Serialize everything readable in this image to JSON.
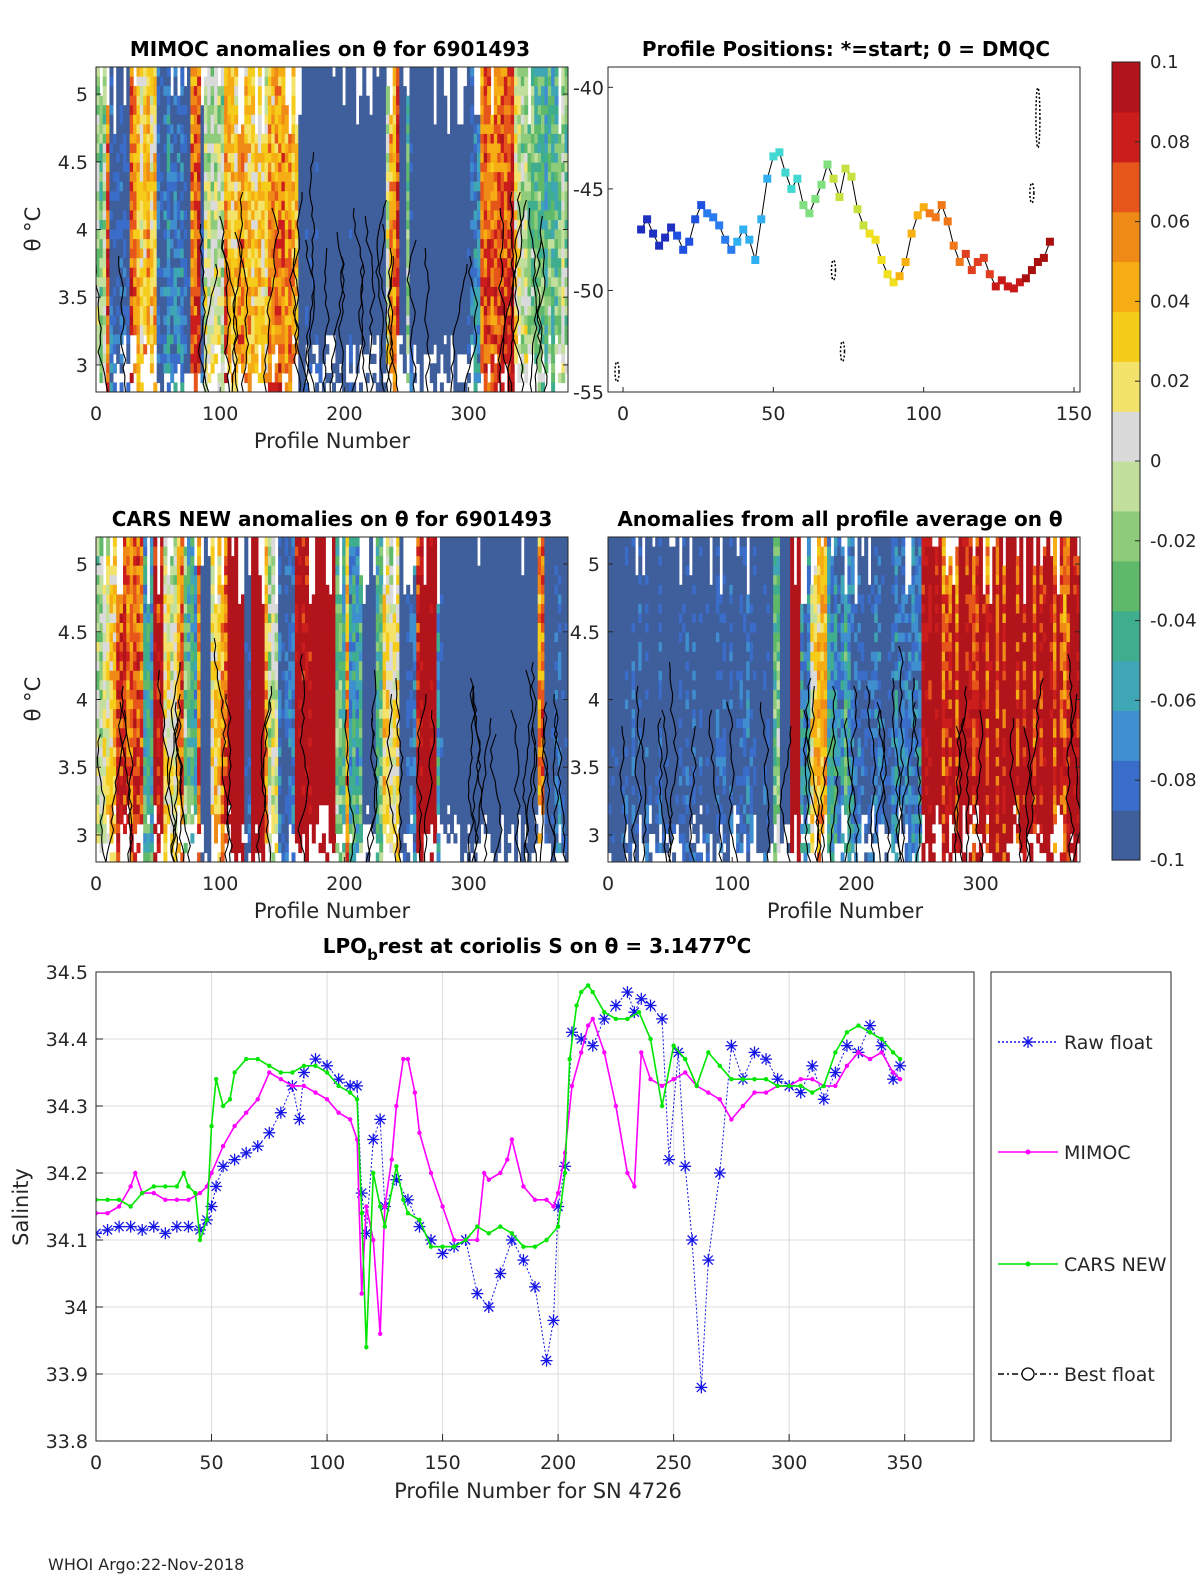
{
  "palette": {
    "cmap": [
      "#3f5e9c",
      "#3a6dc9",
      "#3f8fd0",
      "#3fa6b6",
      "#3fae8e",
      "#5fb96a",
      "#8ecb7a",
      "#c3df9d",
      "#dadada",
      "#f4e36a",
      "#f6cc1a",
      "#f6ad14",
      "#f08a16",
      "#e6561a",
      "#cc1d1d",
      "#b2141b"
    ],
    "raw": "#1414e6",
    "mimoc": "#ff00ff",
    "cars": "#00e600",
    "best": "#000000"
  },
  "panels": {
    "mimoc_title": "MIMOC anomalies on θ  for 6901493",
    "positions_title": "Profile Positions: *=start; 0 = DMQC",
    "cars_title": "CARS NEW anomalies on θ for 6901493",
    "avg_title": "Anomalies from all profile average on θ",
    "ylabel_theta": "θ °C",
    "xlabel_profile": "Profile Number"
  },
  "chart_data": [
    {
      "id": "mimoc",
      "type": "heatmap",
      "title": "MIMOC anomalies on θ  for 6901493",
      "xlabel": "Profile Number",
      "ylabel": "θ °C",
      "xlim": [
        0,
        380
      ],
      "ylim": [
        2.8,
        5.2
      ],
      "xticks": [
        "0",
        "100",
        "200",
        "300"
      ],
      "yticks": [
        "3",
        "3.5",
        "4",
        "4.5",
        "5"
      ],
      "clim": [
        -0.1,
        0.1
      ],
      "seed": 11
    },
    {
      "id": "positions",
      "type": "scatter",
      "title": "Profile Positions: *=start; 0 = DMQC",
      "xlim": [
        -5,
        152
      ],
      "ylim": [
        -55,
        -39
      ],
      "xticks": [
        "0",
        "50",
        "100",
        "150"
      ],
      "yticks": [
        "-55",
        "-50",
        "-45",
        "-40"
      ],
      "track": [
        [
          6,
          -47
        ],
        [
          8,
          -46.5
        ],
        [
          10,
          -47.2
        ],
        [
          12,
          -47.8
        ],
        [
          14,
          -47.4
        ],
        [
          16,
          -46.9
        ],
        [
          18,
          -47.3
        ],
        [
          20,
          -48
        ],
        [
          22,
          -47.6
        ],
        [
          24,
          -46.5
        ],
        [
          26,
          -45.8
        ],
        [
          28,
          -46.2
        ],
        [
          30,
          -46.4
        ],
        [
          32,
          -46.8
        ],
        [
          34,
          -47.5
        ],
        [
          36,
          -48
        ],
        [
          38,
          -47.6
        ],
        [
          40,
          -47
        ],
        [
          42,
          -47.5
        ],
        [
          44,
          -48.5
        ],
        [
          46,
          -46.5
        ],
        [
          48,
          -44.5
        ],
        [
          50,
          -43.4
        ],
        [
          52,
          -43.2
        ],
        [
          54,
          -44.2
        ],
        [
          56,
          -45
        ],
        [
          58,
          -44.5
        ],
        [
          60,
          -45.8
        ],
        [
          62,
          -46.2
        ],
        [
          64,
          -45.5
        ],
        [
          66,
          -44.8
        ],
        [
          68,
          -43.8
        ],
        [
          70,
          -44.5
        ],
        [
          72,
          -45.4
        ],
        [
          74,
          -44
        ],
        [
          76,
          -44.4
        ],
        [
          78,
          -46
        ],
        [
          80,
          -46.8
        ],
        [
          82,
          -47.2
        ],
        [
          84,
          -47.5
        ],
        [
          86,
          -48.5
        ],
        [
          88,
          -49.2
        ],
        [
          90,
          -49.6
        ],
        [
          92,
          -49.3
        ],
        [
          94,
          -48.6
        ],
        [
          96,
          -47.2
        ],
        [
          98,
          -46.3
        ],
        [
          100,
          -45.9
        ],
        [
          102,
          -46.2
        ],
        [
          104,
          -46.4
        ],
        [
          106,
          -45.8
        ],
        [
          108,
          -46.6
        ],
        [
          110,
          -47.8
        ],
        [
          112,
          -48.6
        ],
        [
          114,
          -48.2
        ],
        [
          116,
          -49
        ],
        [
          118,
          -48.6
        ],
        [
          120,
          -48.4
        ],
        [
          122,
          -49.2
        ],
        [
          124,
          -49.8
        ],
        [
          126,
          -49.5
        ],
        [
          128,
          -49.8
        ],
        [
          130,
          -49.9
        ],
        [
          132,
          -49.6
        ],
        [
          134,
          -49.4
        ],
        [
          136,
          -49
        ],
        [
          138,
          -48.6
        ],
        [
          140,
          -48.4
        ],
        [
          142,
          -47.6
        ]
      ],
      "dmqc_blobs": [
        [
          70,
          -49
        ],
        [
          73,
          -53
        ],
        [
          138,
          -41.5
        ],
        [
          136,
          -45.2
        ],
        [
          -2,
          -54
        ]
      ]
    },
    {
      "id": "cars",
      "type": "heatmap",
      "title": "CARS NEW anomalies on θ for 6901493",
      "xlabel": "Profile Number",
      "ylabel": "θ °C",
      "xlim": [
        0,
        380
      ],
      "ylim": [
        2.8,
        5.2
      ],
      "xticks": [
        "0",
        "100",
        "200",
        "300"
      ],
      "yticks": [
        "3",
        "3.5",
        "4",
        "4.5",
        "5"
      ],
      "clim": [
        -0.1,
        0.1
      ],
      "seed": 23
    },
    {
      "id": "avg",
      "type": "heatmap",
      "title": "Anomalies from all profile average on θ",
      "xlabel": "Profile Number",
      "xlim": [
        0,
        380
      ],
      "ylim": [
        2.8,
        5.2
      ],
      "xticks": [
        "0",
        "100",
        "200",
        "300"
      ],
      "yticks": [
        "3",
        "3.5",
        "4",
        "4.5",
        "5"
      ],
      "clim": [
        -0.1,
        0.1
      ],
      "seed": 37
    },
    {
      "id": "colorbar",
      "type": "heatmap",
      "ticks": [
        "0.1",
        "0.08",
        "0.06",
        "0.04",
        "0.02",
        "0",
        "-0.02",
        "-0.04",
        "-0.06",
        "-0.08",
        "-0.1"
      ],
      "clim": [
        -0.1,
        0.1
      ]
    },
    {
      "id": "salinity",
      "type": "line",
      "title_main": "LPO",
      "title_sub": "b",
      "title_rest": "rest at coriolis S on θ = 3.1477",
      "title_sup": "o",
      "title_end": "C",
      "xlabel": "Profile Number for SN 4726",
      "ylabel": "Salinity",
      "xlim": [
        0,
        380
      ],
      "ylim": [
        33.8,
        34.5
      ],
      "xticks": [
        "0",
        "50",
        "100",
        "150",
        "200",
        "250",
        "300",
        "350"
      ],
      "yticks": [
        "33.8",
        "33.9",
        "34",
        "34.1",
        "34.2",
        "34.3",
        "34.4",
        "34.5"
      ],
      "series": [
        {
          "name": "Raw float",
          "x": [
            0,
            5,
            10,
            15,
            20,
            25,
            30,
            35,
            40,
            45,
            48,
            50,
            52,
            55,
            60,
            65,
            70,
            75,
            80,
            85,
            88,
            90,
            95,
            100,
            105,
            110,
            113,
            115,
            117,
            120,
            123,
            125,
            130,
            135,
            140,
            145,
            150,
            155,
            160,
            165,
            170,
            175,
            180,
            185,
            190,
            195,
            198,
            200,
            203,
            206,
            210,
            215,
            220,
            225,
            230,
            233,
            236,
            240,
            245,
            248,
            252,
            255,
            258,
            262,
            265,
            270,
            275,
            280,
            285,
            290,
            295,
            300,
            305,
            310,
            315,
            320,
            325,
            330,
            335,
            340,
            345,
            348
          ],
          "y": [
            34.11,
            34.115,
            34.12,
            34.12,
            34.115,
            34.12,
            34.11,
            34.12,
            34.12,
            34.115,
            34.13,
            34.15,
            34.18,
            34.21,
            34.22,
            34.23,
            34.24,
            34.26,
            34.29,
            34.33,
            34.28,
            34.35,
            34.37,
            34.36,
            34.34,
            34.33,
            34.33,
            34.17,
            34.11,
            34.25,
            34.28,
            34.15,
            34.19,
            34.16,
            34.12,
            34.1,
            34.08,
            34.09,
            34.1,
            34.02,
            34.0,
            34.05,
            34.1,
            34.07,
            34.03,
            33.92,
            33.98,
            34.15,
            34.21,
            34.41,
            34.4,
            34.39,
            34.43,
            34.45,
            34.47,
            34.44,
            34.46,
            34.45,
            34.43,
            34.22,
            34.38,
            34.21,
            34.1,
            33.88,
            34.07,
            34.2,
            34.39,
            34.34,
            34.38,
            34.37,
            34.34,
            34.33,
            34.32,
            34.36,
            34.31,
            34.35,
            34.39,
            34.38,
            34.42,
            34.39,
            34.34,
            34.36
          ]
        },
        {
          "name": "MIMOC",
          "x": [
            0,
            5,
            10,
            15,
            17,
            20,
            25,
            30,
            35,
            40,
            45,
            48,
            50,
            55,
            60,
            65,
            70,
            75,
            80,
            85,
            90,
            95,
            100,
            105,
            110,
            113,
            115,
            117,
            120,
            123,
            125,
            128,
            130,
            133,
            135,
            138,
            140,
            145,
            150,
            155,
            160,
            165,
            168,
            170,
            175,
            178,
            180,
            185,
            190,
            195,
            198,
            200,
            203,
            206,
            210,
            213,
            215,
            220,
            225,
            230,
            233,
            236,
            240,
            245,
            250,
            255,
            260,
            265,
            270,
            275,
            280,
            285,
            290,
            295,
            300,
            305,
            310,
            315,
            320,
            325,
            330,
            335,
            340,
            345,
            348
          ],
          "y": [
            34.14,
            34.14,
            34.15,
            34.18,
            34.2,
            34.17,
            34.17,
            34.16,
            34.16,
            34.16,
            34.17,
            34.18,
            34.2,
            34.24,
            34.27,
            34.29,
            34.31,
            34.35,
            34.34,
            34.33,
            34.33,
            34.32,
            34.31,
            34.29,
            34.28,
            34.25,
            34.02,
            34.15,
            34.1,
            33.96,
            34.15,
            34.22,
            34.3,
            34.37,
            34.37,
            34.32,
            34.26,
            34.2,
            34.15,
            34.1,
            34.1,
            34.1,
            34.2,
            34.19,
            34.2,
            34.22,
            34.25,
            34.18,
            34.16,
            34.16,
            34.15,
            34.17,
            34.23,
            34.33,
            34.38,
            34.42,
            34.43,
            34.38,
            34.3,
            34.2,
            34.18,
            34.38,
            34.34,
            34.33,
            34.34,
            34.35,
            34.33,
            34.32,
            34.31,
            34.28,
            34.3,
            34.32,
            34.32,
            34.33,
            34.33,
            34.34,
            34.34,
            34.33,
            34.33,
            34.36,
            34.38,
            34.37,
            34.38,
            34.35,
            34.34
          ]
        },
        {
          "name": "CARS NEW",
          "x": [
            0,
            5,
            10,
            15,
            20,
            25,
            30,
            35,
            38,
            40,
            43,
            45,
            48,
            50,
            52,
            55,
            58,
            60,
            65,
            70,
            75,
            80,
            85,
            90,
            95,
            100,
            105,
            110,
            113,
            115,
            117,
            120,
            123,
            125,
            130,
            133,
            135,
            140,
            145,
            150,
            155,
            160,
            165,
            170,
            175,
            180,
            185,
            190,
            195,
            200,
            203,
            205,
            208,
            210,
            213,
            215,
            220,
            225,
            230,
            235,
            240,
            245,
            250,
            255,
            260,
            265,
            270,
            275,
            280,
            285,
            290,
            295,
            300,
            305,
            310,
            315,
            320,
            325,
            330,
            335,
            340,
            345,
            348
          ],
          "y": [
            34.16,
            34.16,
            34.16,
            34.15,
            34.17,
            34.18,
            34.18,
            34.18,
            34.2,
            34.18,
            34.17,
            34.1,
            34.13,
            34.27,
            34.34,
            34.3,
            34.31,
            34.35,
            34.37,
            34.37,
            34.36,
            34.35,
            34.35,
            34.36,
            34.36,
            34.35,
            34.33,
            34.32,
            34.31,
            34.14,
            33.94,
            34.2,
            34.15,
            34.12,
            34.21,
            34.16,
            34.14,
            34.13,
            34.09,
            34.09,
            34.09,
            34.1,
            34.12,
            34.11,
            34.12,
            34.11,
            34.09,
            34.09,
            34.1,
            34.12,
            34.2,
            34.37,
            34.45,
            34.47,
            34.48,
            34.47,
            34.44,
            34.43,
            34.43,
            34.44,
            34.4,
            34.3,
            34.39,
            34.37,
            34.33,
            34.38,
            34.36,
            34.34,
            34.34,
            34.34,
            34.34,
            34.33,
            34.33,
            34.33,
            34.32,
            34.33,
            34.38,
            34.41,
            34.42,
            34.41,
            34.4,
            34.38,
            34.37
          ]
        },
        {
          "name": "Best float",
          "x": [],
          "y": []
        }
      ]
    }
  ],
  "footer": "WHOI Argo:22-Nov-2018"
}
